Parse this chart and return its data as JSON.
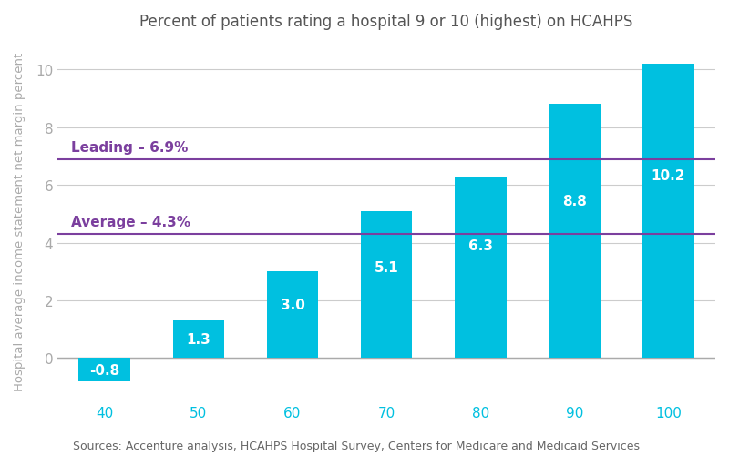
{
  "title": "Percent of patients rating a hospital 9 or 10 (highest) on HCAHPS",
  "xlabel_values": [
    40,
    50,
    60,
    70,
    80,
    90,
    100
  ],
  "bar_values": [
    -0.8,
    1.3,
    3.0,
    5.1,
    6.3,
    8.8,
    10.2
  ],
  "bar_color": "#00C0E0",
  "bar_labels": [
    "-0.8",
    "1.3",
    "3.0",
    "5.1",
    "6.3",
    "8.8",
    "10.2"
  ],
  "ylabel": "Hospital average income statement net margin percent",
  "ylim": [
    -1.5,
    11.0
  ],
  "yticks": [
    0,
    2,
    4,
    6,
    8,
    10
  ],
  "leading_value": 6.9,
  "average_value": 4.3,
  "leading_label": "Leading – 6.9%",
  "average_label": "Average – 4.3%",
  "hline_color": "#7B3F9E",
  "source_text": "Sources: Accenture analysis, HCAHPS Hospital Survey, Centers for Medicare and Medicaid Services",
  "title_fontsize": 12,
  "label_fontsize": 9.5,
  "tick_fontsize": 11,
  "source_fontsize": 9,
  "bar_label_fontsize": 11,
  "hline_label_fontsize": 11,
  "background_color": "#FFFFFF",
  "grid_color": "#CCCCCC",
  "axis_color": "#AAAAAA",
  "tick_color": "#00C0E0",
  "title_color": "#555555",
  "source_color": "#666666",
  "hline_label_color": "#7B3F9E"
}
